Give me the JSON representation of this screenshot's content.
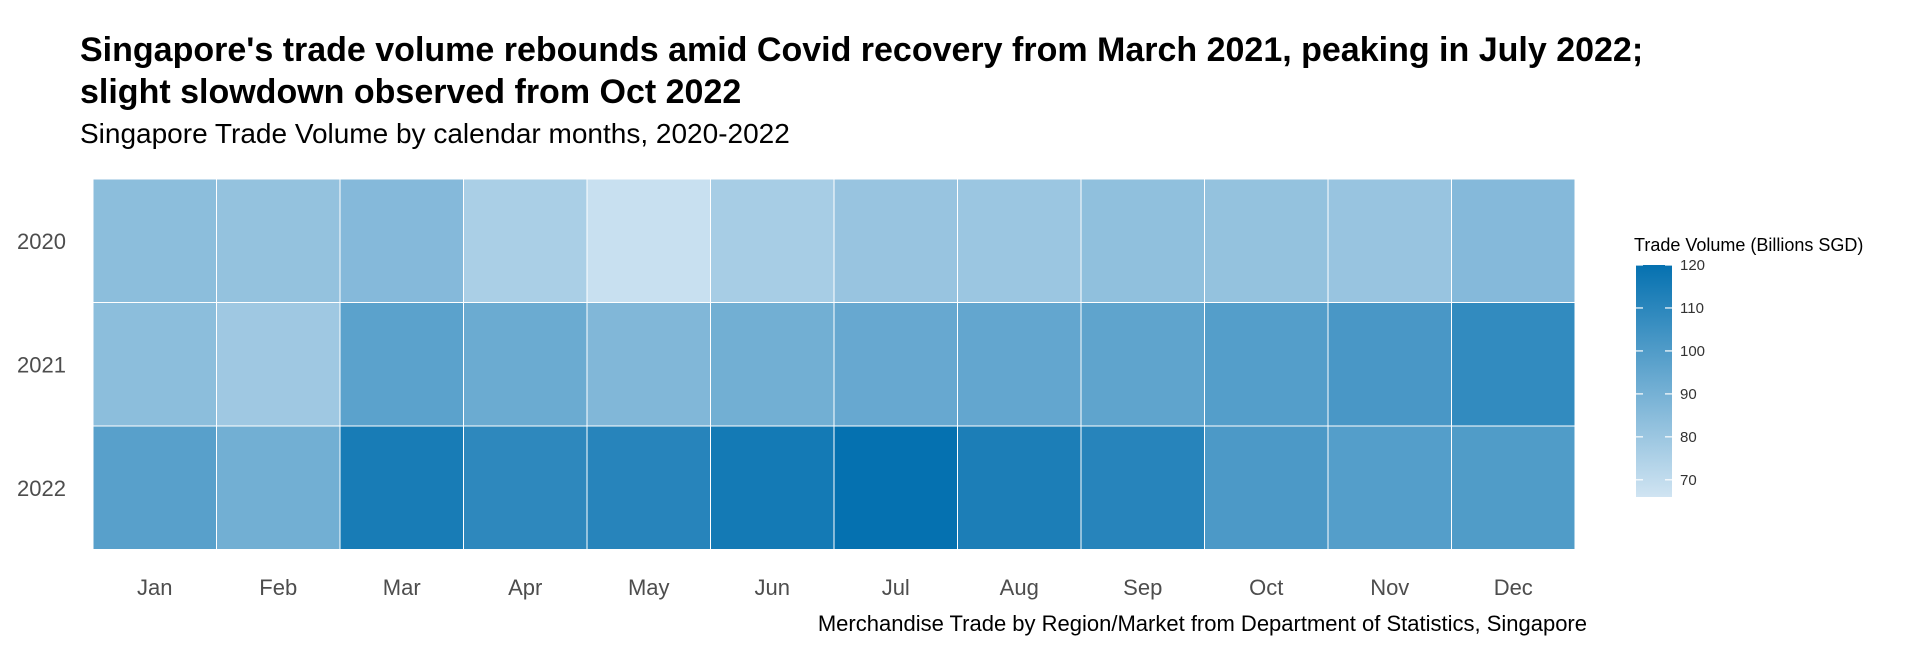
{
  "title": {
    "line1": "Singapore's trade volume rebounds amid Covid recovery from March 2021, peaking in July 2022;",
    "line2": "slight slowdown observed from Oct 2022"
  },
  "subtitle": "Singapore Trade Volume by calendar months, 2020-2022",
  "caption": "Merchandise Trade by Region/Market from Department of Statistics, Singapore",
  "chart_data": {
    "type": "heatmap",
    "title": "Singapore's trade volume rebounds amid Covid recovery from March 2021, peaking in July 2022; slight slowdown observed from Oct 2022",
    "subtitle": "Singapore Trade Volume by calendar months, 2020-2022",
    "x_categories": [
      "Jan",
      "Feb",
      "Mar",
      "Apr",
      "May",
      "Jun",
      "Jul",
      "Aug",
      "Sep",
      "Oct",
      "Nov",
      "Dec"
    ],
    "y_categories": [
      "2020",
      "2021",
      "2022"
    ],
    "values": [
      [
        84,
        82,
        86,
        76,
        68,
        77,
        81,
        80,
        83,
        82,
        81,
        86
      ],
      [
        84,
        79,
        97,
        93,
        87,
        91,
        94,
        95,
        96,
        99,
        102,
        108
      ],
      [
        98,
        91,
        115,
        109,
        111,
        116,
        120,
        114,
        111,
        101,
        99,
        100
      ]
    ],
    "legend": {
      "title": "Trade Volume (Billions SGD)",
      "ticks": [
        70,
        80,
        90,
        100,
        110,
        120
      ],
      "range": [
        66,
        120
      ],
      "position": "right"
    },
    "colors": {
      "low": "#d0e4f2",
      "high": "#0571b0",
      "tile_border": "#ffffff",
      "axis_text": "#4d4d4d"
    }
  }
}
